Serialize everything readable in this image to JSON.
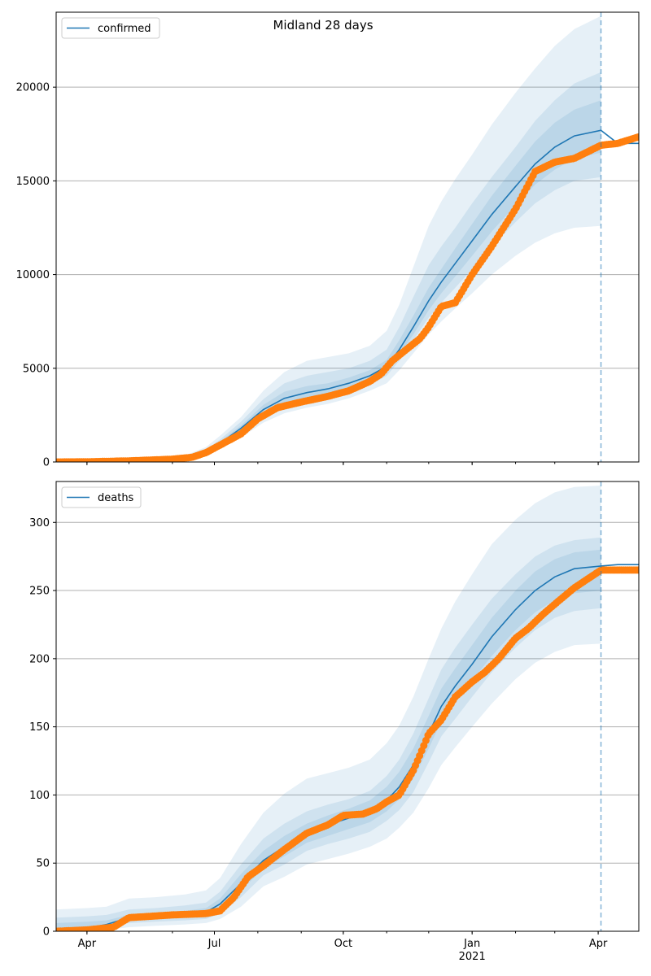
{
  "figure": {
    "title": "Midland 28 days",
    "colors": {
      "model_line": "#1f77b4",
      "observed": "#ff7f0e",
      "band": "#1f77b4",
      "cutoff_line": "#1f77b4",
      "grid": "#b0b0b0"
    }
  },
  "x_axis": {
    "start": "2020-03-10",
    "end": "2021-04-30",
    "tick_labels": [
      {
        "date": "2020-04-01",
        "label": "Apr",
        "sub": ""
      },
      {
        "date": "2020-07-01",
        "label": "Jul",
        "sub": ""
      },
      {
        "date": "2020-10-01",
        "label": "Oct",
        "sub": ""
      },
      {
        "date": "2021-01-01",
        "label": "Jan",
        "sub": "2021"
      },
      {
        "date": "2021-04-01",
        "label": "Apr",
        "sub": ""
      }
    ],
    "cutoff_date": "2021-04-03"
  },
  "chart_data": [
    {
      "type": "line",
      "legend": "confirmed",
      "legend_position": "top-left",
      "grid": "horizontal",
      "ylim": [
        0,
        24000
      ],
      "yticks": [
        0,
        5000,
        10000,
        15000,
        20000
      ],
      "model": {
        "name": "confirmed",
        "dates": [
          "2020-03-10",
          "2020-04-15",
          "2020-05-15",
          "2020-06-10",
          "2020-06-25",
          "2020-07-05",
          "2020-07-20",
          "2020-08-05",
          "2020-08-20",
          "2020-09-05",
          "2020-09-20",
          "2020-10-05",
          "2020-10-20",
          "2020-11-01",
          "2020-11-10",
          "2020-11-20",
          "2020-12-01",
          "2020-12-10",
          "2020-12-20",
          "2021-01-01",
          "2021-01-15",
          "2021-02-01",
          "2021-02-15",
          "2021-03-01",
          "2021-03-15",
          "2021-04-03",
          "2021-04-15",
          "2021-04-30"
        ],
        "median": [
          0,
          20,
          80,
          200,
          500,
          1000,
          1800,
          2800,
          3400,
          3700,
          3900,
          4200,
          4600,
          5100,
          6000,
          7200,
          8600,
          9600,
          10600,
          11800,
          13200,
          14700,
          15900,
          16800,
          17400,
          17700,
          17000,
          17000
        ],
        "band_outer": [
          [
            0,
            0,
            30,
            100,
            300,
            700,
            1300,
            2100,
            2600,
            2900,
            3100,
            3400,
            3800,
            4200,
            4900,
            5800,
            6800,
            7500,
            8200,
            9000,
            10000,
            11000,
            11700,
            12200,
            12500,
            12600
          ],
          [
            0,
            40,
            160,
            350,
            800,
            1400,
            2400,
            3800,
            4800,
            5400,
            5600,
            5800,
            6200,
            7000,
            8400,
            10400,
            12600,
            13900,
            15100,
            16400,
            18000,
            19700,
            21000,
            22200,
            23100,
            23800
          ]
        ],
        "band_mid": [
          [
            0,
            5,
            50,
            140,
            380,
            820,
            1500,
            2400,
            2900,
            3200,
            3400,
            3700,
            4100,
            4600,
            5400,
            6500,
            7700,
            8500,
            9300,
            10300,
            11500,
            12800,
            13800,
            14500,
            15000,
            15200
          ],
          [
            0,
            30,
            120,
            280,
            650,
            1200,
            2150,
            3350,
            4200,
            4600,
            4800,
            5000,
            5400,
            6000,
            7200,
            8800,
            10500,
            11500,
            12500,
            13800,
            15200,
            16800,
            18200,
            19300,
            20200,
            20800
          ]
        ],
        "band_inner": [
          [
            0,
            10,
            60,
            170,
            430,
            900,
            1650,
            2600,
            3100,
            3400,
            3600,
            3900,
            4300,
            4800,
            5700,
            6800,
            8100,
            9000,
            9900,
            11000,
            12300,
            13700,
            14800,
            15600,
            16200,
            16500
          ],
          [
            0,
            25,
            100,
            240,
            580,
            1100,
            1950,
            3050,
            3750,
            4050,
            4200,
            4500,
            4900,
            5450,
            6500,
            7800,
            9300,
            10300,
            11400,
            12700,
            14200,
            15800,
            17100,
            18100,
            18800,
            19300
          ]
        ]
      },
      "observed": {
        "name": "observed",
        "dates": [
          "2020-03-10",
          "2020-04-01",
          "2020-05-01",
          "2020-06-01",
          "2020-06-15",
          "2020-06-25",
          "2020-07-05",
          "2020-07-20",
          "2020-08-01",
          "2020-08-15",
          "2020-09-01",
          "2020-09-20",
          "2020-10-05",
          "2020-10-20",
          "2020-10-28",
          "2020-11-05",
          "2020-11-15",
          "2020-11-25",
          "2020-12-01",
          "2020-12-10",
          "2020-12-20",
          "2021-01-01",
          "2021-01-15",
          "2021-02-01",
          "2021-02-15",
          "2021-03-01",
          "2021-03-15",
          "2021-04-03",
          "2021-04-15",
          "2021-04-30"
        ],
        "values": [
          0,
          10,
          60,
          150,
          250,
          500,
          900,
          1500,
          2300,
          2900,
          3200,
          3500,
          3800,
          4300,
          4700,
          5400,
          6000,
          6600,
          7200,
          8300,
          8500,
          10000,
          11500,
          13500,
          15500,
          16000,
          16200,
          16900,
          17000,
          17350
        ]
      }
    },
    {
      "type": "line",
      "legend": "deaths",
      "legend_position": "top-left",
      "grid": "horizontal",
      "ylim": [
        0,
        330
      ],
      "yticks": [
        0,
        50,
        100,
        150,
        200,
        250,
        300
      ],
      "model": {
        "name": "deaths",
        "dates": [
          "2020-03-10",
          "2020-04-01",
          "2020-04-15",
          "2020-05-01",
          "2020-05-20",
          "2020-06-10",
          "2020-06-25",
          "2020-07-05",
          "2020-07-20",
          "2020-08-05",
          "2020-08-20",
          "2020-09-05",
          "2020-09-20",
          "2020-10-05",
          "2020-10-20",
          "2020-11-01",
          "2020-11-10",
          "2020-11-20",
          "2020-12-01",
          "2020-12-10",
          "2020-12-20",
          "2021-01-01",
          "2021-01-15",
          "2021-02-01",
          "2021-02-15",
          "2021-03-01",
          "2021-03-15",
          "2021-04-03",
          "2021-04-15",
          "2021-04-30"
        ],
        "median": [
          0,
          2,
          5,
          10,
          11,
          12,
          14,
          20,
          35,
          52,
          62,
          72,
          78,
          83,
          88,
          96,
          106,
          122,
          145,
          165,
          180,
          196,
          216,
          236,
          250,
          260,
          266,
          268,
          269,
          269
        ],
        "band_outer": [
          [
            0,
            0,
            1,
            3,
            4,
            5,
            6,
            9,
            18,
            33,
            40,
            49,
            53,
            57,
            62,
            68,
            76,
            87,
            105,
            122,
            135,
            150,
            167,
            185,
            197,
            205,
            210,
            211
          ],
          [
            16,
            17,
            18,
            24,
            25,
            27,
            30,
            39,
            64,
            87,
            101,
            112,
            116,
            120,
            126,
            138,
            151,
            172,
            200,
            222,
            242,
            262,
            284,
            302,
            314,
            322,
            326,
            327
          ]
        ],
        "band_mid": [
          [
            0,
            0,
            3,
            6,
            7,
            8,
            9,
            13,
            25,
            41,
            49,
            59,
            64,
            68,
            73,
            81,
            89,
            102,
            124,
            143,
            156,
            172,
            190,
            208,
            221,
            230,
            235,
            237
          ],
          [
            10,
            11,
            12,
            16,
            17,
            19,
            21,
            29,
            49,
            68,
            79,
            88,
            93,
            97,
            103,
            114,
            126,
            145,
            171,
            192,
            208,
            225,
            244,
            262,
            275,
            283,
            287,
            289
          ]
        ],
        "band_inner": [
          [
            0,
            1,
            4,
            8,
            9,
            10,
            11,
            16,
            30,
            46,
            55,
            65,
            70,
            75,
            80,
            88,
            97,
            112,
            134,
            154,
            168,
            184,
            202,
            221,
            234,
            243,
            248,
            250
          ],
          [
            6,
            7,
            8,
            12,
            13,
            15,
            17,
            24,
            42,
            59,
            70,
            79,
            85,
            90,
            96,
            106,
            117,
            134,
            158,
            178,
            193,
            210,
            230,
            250,
            264,
            273,
            278,
            280
          ]
        ]
      },
      "observed": {
        "name": "observed",
        "dates": [
          "2020-03-10",
          "2020-04-01",
          "2020-04-20",
          "2020-05-01",
          "2020-06-01",
          "2020-06-25",
          "2020-07-05",
          "2020-07-15",
          "2020-07-25",
          "2020-08-05",
          "2020-08-20",
          "2020-09-05",
          "2020-09-20",
          "2020-10-01",
          "2020-10-15",
          "2020-10-25",
          "2020-11-01",
          "2020-11-10",
          "2020-11-20",
          "2020-11-25",
          "2020-12-01",
          "2020-12-10",
          "2020-12-20",
          "2021-01-01",
          "2021-01-10",
          "2021-01-20",
          "2021-02-01",
          "2021-02-10",
          "2021-02-20",
          "2021-03-01",
          "2021-03-15",
          "2021-04-03",
          "2021-04-15",
          "2021-04-30"
        ],
        "values": [
          0,
          1,
          3,
          10,
          12,
          13,
          15,
          25,
          40,
          48,
          60,
          72,
          78,
          85,
          86,
          90,
          95,
          100,
          118,
          130,
          145,
          155,
          172,
          183,
          190,
          200,
          215,
          222,
          232,
          240,
          252,
          265,
          265,
          265
        ]
      }
    }
  ]
}
